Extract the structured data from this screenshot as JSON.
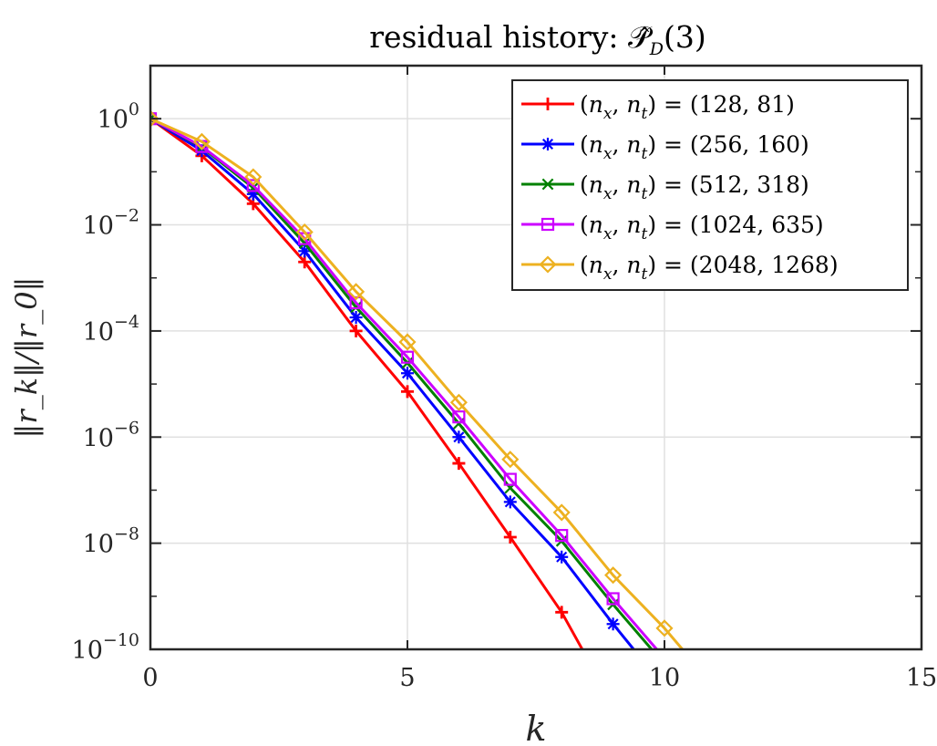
{
  "chart_data": {
    "type": "line",
    "title": "residual history: 𝒫̂",
    "title_sub": "D",
    "title_tail": "(3)",
    "xlabel": "k",
    "ylabel": "‖r_k‖/‖r_0‖",
    "xlim": [
      0,
      15
    ],
    "ylim": [
      1e-10,
      10
    ],
    "yscale": "log",
    "grid": true,
    "legend_position": "top-right",
    "x_ticks": [
      "0",
      "5",
      "10",
      "15"
    ],
    "y_ticks": [
      {
        "base": "10",
        "exp": "0",
        "value": 1
      },
      {
        "base": "10",
        "exp": "−2",
        "value": 0.01
      },
      {
        "base": "10",
        "exp": "−4",
        "value": 0.0001
      },
      {
        "base": "10",
        "exp": "−6",
        "value": 1e-06
      },
      {
        "base": "10",
        "exp": "−8",
        "value": 1e-08
      },
      {
        "base": "10",
        "exp": "−10",
        "value": 1e-10
      }
    ],
    "series": [
      {
        "name": "(n_x, n_t) = (128, 81)",
        "color": "#ff0000",
        "marker": "plus",
        "x": [
          0,
          1,
          2,
          3,
          4,
          5,
          6,
          7,
          8,
          8.4
        ],
        "y": [
          1,
          0.2,
          0.025,
          0.002,
          0.0001,
          7.2e-06,
          3.2e-07,
          1.3e-08,
          5e-10,
          1e-10
        ]
      },
      {
        "name": "(n_x, n_t) = (256, 160)",
        "color": "#0000ff",
        "marker": "asterisk",
        "x": [
          0,
          1,
          2,
          3,
          4,
          5,
          6,
          7,
          8,
          9,
          9.4
        ],
        "y": [
          1,
          0.25,
          0.038,
          0.0032,
          0.00018,
          1.6e-05,
          1e-06,
          6e-08,
          5.5e-09,
          3e-10,
          1e-10
        ]
      },
      {
        "name": "(n_x, n_t) = (512, 318)",
        "color": "#008000",
        "marker": "cross",
        "x": [
          0,
          1,
          2,
          3,
          4,
          5,
          6,
          7,
          8,
          9,
          9.75
        ],
        "y": [
          1,
          0.29,
          0.05,
          0.0045,
          0.00028,
          2.5e-05,
          1.8e-06,
          1.1e-07,
          1.1e-08,
          7e-10,
          1e-10
        ]
      },
      {
        "name": "(n_x, n_t) = (1024, 635)",
        "color": "#cc00ff",
        "marker": "square",
        "x": [
          0,
          1,
          2,
          3,
          4,
          5,
          6,
          7,
          8,
          9,
          9.85
        ],
        "y": [
          1,
          0.3,
          0.055,
          0.0055,
          0.00034,
          3.2e-05,
          2.4e-06,
          1.6e-07,
          1.4e-08,
          9e-10,
          1e-10
        ]
      },
      {
        "name": "(n_x, n_t) = (2048, 1268)",
        "color": "#edb120",
        "marker": "diamond",
        "x": [
          0,
          1,
          2,
          3,
          4,
          5,
          6,
          7,
          8,
          9,
          10,
          10.35
        ],
        "y": [
          1,
          0.37,
          0.08,
          0.0073,
          0.00055,
          6.2e-05,
          4.5e-06,
          3.8e-07,
          3.8e-08,
          2.5e-09,
          2.5e-10,
          1e-10
        ]
      }
    ],
    "legend": [
      {
        "label": "(n_x, n_t) = (128, 81)",
        "lhs_a": "(",
        "lhs_n1": "n",
        "lhs_s1": "x",
        "lhs_comma": ", ",
        "lhs_n2": "n",
        "lhs_s2": "t",
        "rhs": ") = (128, 81)"
      },
      {
        "label": "(n_x, n_t) = (256, 160)",
        "lhs_a": "(",
        "lhs_n1": "n",
        "lhs_s1": "x",
        "lhs_comma": ", ",
        "lhs_n2": "n",
        "lhs_s2": "t",
        "rhs": ") = (256, 160)"
      },
      {
        "label": "(n_x, n_t) = (512, 318)",
        "lhs_a": "(",
        "lhs_n1": "n",
        "lhs_s1": "x",
        "lhs_comma": ", ",
        "lhs_n2": "n",
        "lhs_s2": "t",
        "rhs": ") = (512, 318)"
      },
      {
        "label": "(n_x, n_t) = (1024, 635)",
        "lhs_a": "(",
        "lhs_n1": "n",
        "lhs_s1": "x",
        "lhs_comma": ", ",
        "lhs_n2": "n",
        "lhs_s2": "t",
        "rhs": ") = (1024, 635)"
      },
      {
        "label": "(n_x, n_t) = (2048, 1268)",
        "lhs_a": "(",
        "lhs_n1": "n",
        "lhs_s1": "x",
        "lhs_comma": ", ",
        "lhs_n2": "n",
        "lhs_s2": "t",
        "rhs": ") = (2048, 1268)"
      }
    ]
  }
}
